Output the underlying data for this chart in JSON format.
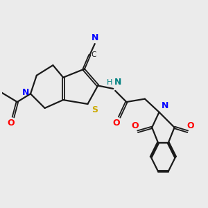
{
  "bg_color": "#ebebeb",
  "bond_color": "#1a1a1a",
  "colors": {
    "N": "#0000ff",
    "O": "#ff0000",
    "S": "#ccaa00",
    "C_nitrile": "#008080",
    "NH": "#008080",
    "bond": "#1a1a1a"
  },
  "figsize": [
    3.0,
    3.0
  ],
  "dpi": 100
}
